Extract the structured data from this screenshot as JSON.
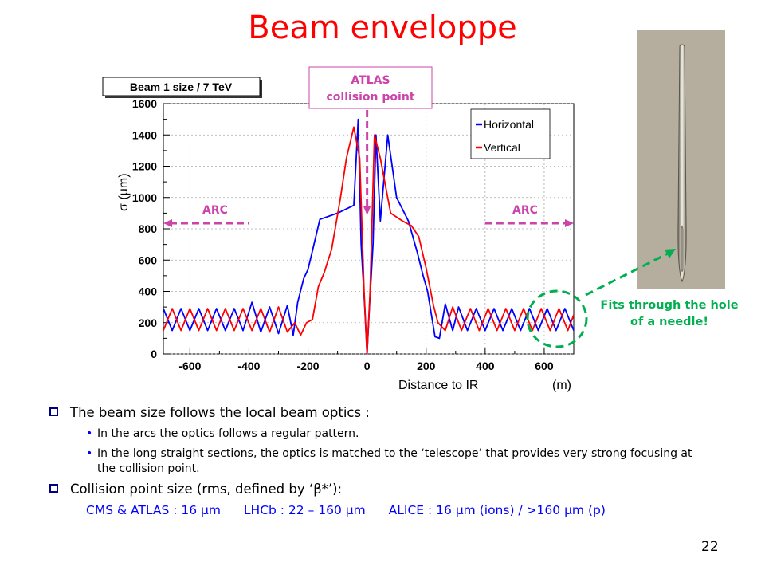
{
  "slide": {
    "title": "Beam enveloppe",
    "page_number": "22",
    "needle_caption": "Fits through the hole of a needle!",
    "annotations": {
      "atlas_label": "ATLAS collision point",
      "arc_left": "ARC",
      "arc_right": "ARC"
    },
    "bullets": [
      {
        "text": "The beam size follows the local beam optics :",
        "sub": [
          "In the arcs the optics follows a regular pattern.",
          "In the long straight sections, the optics is matched to the ‘telescope’ that provides very strong focusing at the collision point."
        ]
      },
      {
        "text": "Collision point size (rms, defined by ‘β*’):",
        "sub": []
      }
    ],
    "collision_sizes": [
      "CMS & ATLAS : 16 μm",
      "LHCb : 22 – 160 μm",
      "ALICE : 16 μm (ions) / >160 μm (p)"
    ]
  },
  "colors": {
    "title": "#ff0000",
    "annotation": "#cc44aa",
    "needle_text": "#00b050",
    "horizontal": "#0000ff",
    "vertical": "#ff0000",
    "collision_sizes": "#0000ff"
  },
  "chart_data": {
    "type": "line",
    "title": "Beam 1 size / 7 TeV",
    "xlabel": "Distance to IR",
    "xunit": "(m)",
    "ylabel": "σ (μm)",
    "xlim": [
      -690,
      700
    ],
    "ylim": [
      0,
      1600
    ],
    "xticks": [
      -600,
      -400,
      -200,
      0,
      200,
      400,
      600
    ],
    "yticks": [
      0,
      200,
      400,
      600,
      800,
      1000,
      1200,
      1400,
      1600
    ],
    "grid": true,
    "legend_position": "top-right",
    "series": [
      {
        "name": "Horizontal",
        "color": "#0000ff",
        "points": [
          [
            -690,
            290
          ],
          [
            -660,
            150
          ],
          [
            -630,
            290
          ],
          [
            -600,
            150
          ],
          [
            -570,
            290
          ],
          [
            -540,
            150
          ],
          [
            -510,
            290
          ],
          [
            -480,
            150
          ],
          [
            -450,
            290
          ],
          [
            -420,
            150
          ],
          [
            -390,
            330
          ],
          [
            -360,
            140
          ],
          [
            -330,
            300
          ],
          [
            -300,
            130
          ],
          [
            -270,
            310
          ],
          [
            -250,
            120
          ],
          [
            -235,
            330
          ],
          [
            -215,
            480
          ],
          [
            -200,
            540
          ],
          [
            -180,
            700
          ],
          [
            -160,
            860
          ],
          [
            -100,
            900
          ],
          [
            -45,
            950
          ],
          [
            -30,
            1500
          ],
          [
            -20,
            700
          ],
          [
            -8,
            300
          ],
          [
            0,
            0
          ],
          [
            8,
            300
          ],
          [
            20,
            700
          ],
          [
            30,
            1400
          ],
          [
            45,
            850
          ],
          [
            70,
            1400
          ],
          [
            100,
            1000
          ],
          [
            140,
            850
          ],
          [
            170,
            650
          ],
          [
            190,
            500
          ],
          [
            205,
            400
          ],
          [
            230,
            110
          ],
          [
            245,
            100
          ],
          [
            265,
            320
          ],
          [
            290,
            150
          ],
          [
            310,
            300
          ],
          [
            340,
            150
          ],
          [
            370,
            290
          ],
          [
            400,
            150
          ],
          [
            430,
            290
          ],
          [
            460,
            150
          ],
          [
            490,
            290
          ],
          [
            520,
            150
          ],
          [
            550,
            290
          ],
          [
            580,
            150
          ],
          [
            610,
            290
          ],
          [
            640,
            150
          ],
          [
            670,
            290
          ],
          [
            700,
            150
          ]
        ]
      },
      {
        "name": "Vertical",
        "color": "#ff0000",
        "points": [
          [
            -690,
            150
          ],
          [
            -660,
            290
          ],
          [
            -630,
            150
          ],
          [
            -600,
            290
          ],
          [
            -570,
            150
          ],
          [
            -540,
            290
          ],
          [
            -510,
            150
          ],
          [
            -480,
            290
          ],
          [
            -450,
            150
          ],
          [
            -420,
            290
          ],
          [
            -390,
            150
          ],
          [
            -360,
            290
          ],
          [
            -330,
            140
          ],
          [
            -300,
            300
          ],
          [
            -270,
            140
          ],
          [
            -245,
            200
          ],
          [
            -225,
            120
          ],
          [
            -205,
            200
          ],
          [
            -185,
            220
          ],
          [
            -165,
            430
          ],
          [
            -145,
            520
          ],
          [
            -120,
            670
          ],
          [
            -90,
            1000
          ],
          [
            -70,
            1250
          ],
          [
            -45,
            1450
          ],
          [
            -25,
            1250
          ],
          [
            -10,
            400
          ],
          [
            0,
            0
          ],
          [
            10,
            400
          ],
          [
            25,
            1400
          ],
          [
            45,
            1250
          ],
          [
            65,
            1050
          ],
          [
            80,
            900
          ],
          [
            120,
            850
          ],
          [
            150,
            820
          ],
          [
            175,
            750
          ],
          [
            200,
            550
          ],
          [
            225,
            310
          ],
          [
            240,
            200
          ],
          [
            265,
            150
          ],
          [
            290,
            300
          ],
          [
            320,
            150
          ],
          [
            350,
            290
          ],
          [
            380,
            150
          ],
          [
            410,
            290
          ],
          [
            440,
            150
          ],
          [
            470,
            290
          ],
          [
            500,
            150
          ],
          [
            530,
            290
          ],
          [
            560,
            150
          ],
          [
            590,
            290
          ],
          [
            620,
            150
          ],
          [
            650,
            290
          ],
          [
            680,
            150
          ],
          [
            700,
            250
          ]
        ]
      }
    ]
  }
}
